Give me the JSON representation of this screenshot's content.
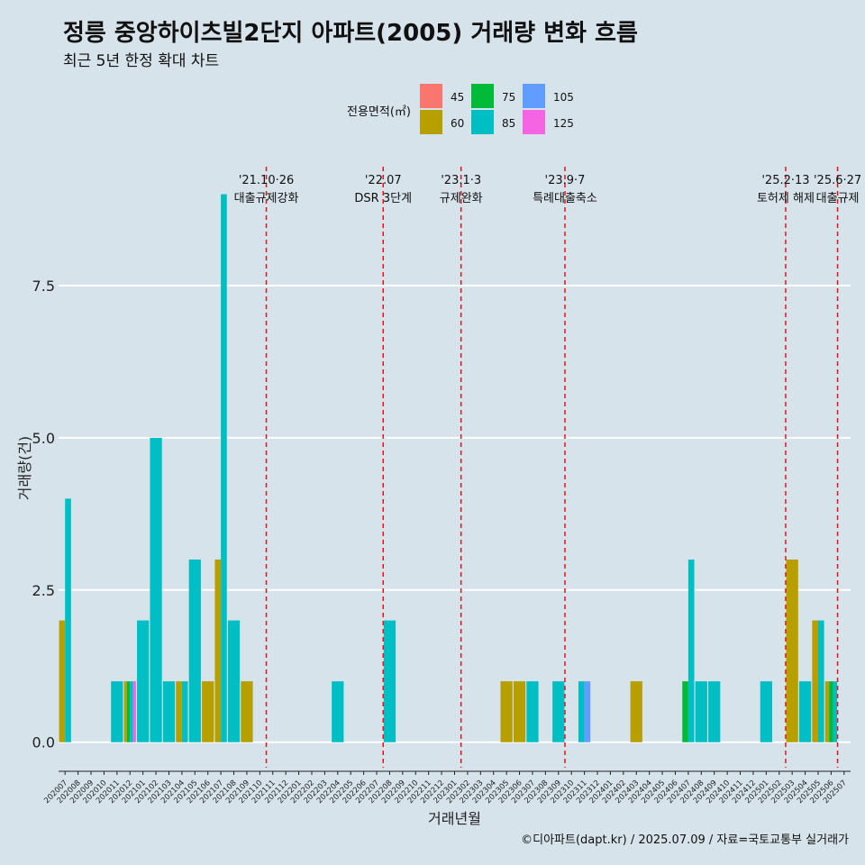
{
  "title": "정릉 중앙하이츠빌2단지 아파트(2005) 거래량 변화 흐름",
  "subtitle": "최근 5년 한정 확대 차트",
  "caption": "©디아파트(dapt.kr) / 2025.07.09 / 자료=국토교통부 실거래가",
  "legend": {
    "title": "전용면적(㎡)",
    "items": [
      {
        "label": "45",
        "color": "#f8766d"
      },
      {
        "label": "60",
        "color": "#b79f00"
      },
      {
        "label": "75",
        "color": "#00ba38"
      },
      {
        "label": "85",
        "color": "#00bfc4"
      },
      {
        "label": "105",
        "color": "#619cff"
      },
      {
        "label": "125",
        "color": "#f564e3"
      }
    ]
  },
  "chart_data": {
    "type": "bar",
    "stacking": "dodge",
    "title": "정릉 중앙하이츠빌2단지 아파트(2005) 거래량 변화 흐름",
    "xlabel": "거래년월",
    "ylabel": "거래량(건)",
    "ylim": [
      -0.3,
      9.6
    ],
    "yticks": [
      0.0,
      2.5,
      5.0,
      7.5
    ],
    "ytick_labels": [
      "0.0",
      "2.5",
      "5.0",
      "7.5"
    ],
    "months": [
      "202007",
      "202008",
      "202009",
      "202010",
      "202011",
      "202012",
      "202101",
      "202102",
      "202103",
      "202104",
      "202105",
      "202106",
      "202107",
      "202108",
      "202109",
      "202110",
      "202111",
      "202112",
      "202201",
      "202202",
      "202203",
      "202204",
      "202205",
      "202206",
      "202207",
      "202208",
      "202209",
      "202210",
      "202211",
      "202212",
      "202301",
      "202302",
      "202303",
      "202304",
      "202305",
      "202306",
      "202307",
      "202308",
      "202309",
      "202310",
      "202311",
      "202312",
      "202401",
      "202402",
      "202403",
      "202404",
      "202405",
      "202406",
      "202407",
      "202408",
      "202409",
      "202410",
      "202411",
      "202412",
      "202501",
      "202502",
      "202503",
      "202504",
      "202505",
      "202506",
      "202507"
    ],
    "bars": [
      {
        "month": "202007",
        "values": {
          "60": 2,
          "85": 4
        }
      },
      {
        "month": "202011",
        "values": {
          "85": 1
        }
      },
      {
        "month": "202012",
        "values": {
          "60": 1,
          "75": 1,
          "85": 1,
          "125": 1
        }
      },
      {
        "month": "202101",
        "values": {
          "85": 2
        }
      },
      {
        "month": "202102",
        "values": {
          "85": 5
        }
      },
      {
        "month": "202103",
        "values": {
          "85": 1
        }
      },
      {
        "month": "202104",
        "values": {
          "60": 1,
          "85": 1
        }
      },
      {
        "month": "202105",
        "values": {
          "85": 3
        }
      },
      {
        "month": "202106",
        "values": {
          "60": 1
        }
      },
      {
        "month": "202107",
        "values": {
          "60": 3,
          "85": 9
        }
      },
      {
        "month": "202108",
        "values": {
          "85": 2
        }
      },
      {
        "month": "202109",
        "values": {
          "60": 1
        }
      },
      {
        "month": "202204",
        "values": {
          "85": 1
        }
      },
      {
        "month": "202208",
        "values": {
          "85": 2
        }
      },
      {
        "month": "202305",
        "values": {
          "60": 1
        }
      },
      {
        "month": "202306",
        "values": {
          "60": 1
        }
      },
      {
        "month": "202307",
        "values": {
          "85": 1
        }
      },
      {
        "month": "202309",
        "values": {
          "85": 1
        }
      },
      {
        "month": "202311",
        "values": {
          "85": 1,
          "105": 1
        }
      },
      {
        "month": "202403",
        "values": {
          "60": 1
        }
      },
      {
        "month": "202407",
        "values": {
          "75": 1,
          "85": 3
        }
      },
      {
        "month": "202408",
        "values": {
          "85": 1
        }
      },
      {
        "month": "202409",
        "values": {
          "85": 1
        }
      },
      {
        "month": "202501",
        "values": {
          "85": 1
        }
      },
      {
        "month": "202503",
        "values": {
          "60": 3
        }
      },
      {
        "month": "202504",
        "values": {
          "85": 1
        }
      },
      {
        "month": "202505",
        "values": {
          "60": 2,
          "85": 2
        }
      },
      {
        "month": "202506",
        "values": {
          "60": 1,
          "75": 1,
          "85": 1
        }
      }
    ],
    "events": [
      {
        "month_index": 15.5,
        "date": "'21.10·26",
        "label": "대출규제강화"
      },
      {
        "month_index": 24.5,
        "date": "'22.07",
        "label": "DSR 3단계"
      },
      {
        "month_index": 30.5,
        "date": "'23.1·3",
        "label": "규제완화"
      },
      {
        "month_index": 38.5,
        "date": "'23.9·7",
        "label": "특례대출축소"
      },
      {
        "month_index": 55.5,
        "date": "'25.2·13",
        "label": "토허제 해제"
      },
      {
        "month_index": 59.5,
        "date": "'25.6·27",
        "label": "대출규제"
      }
    ]
  }
}
